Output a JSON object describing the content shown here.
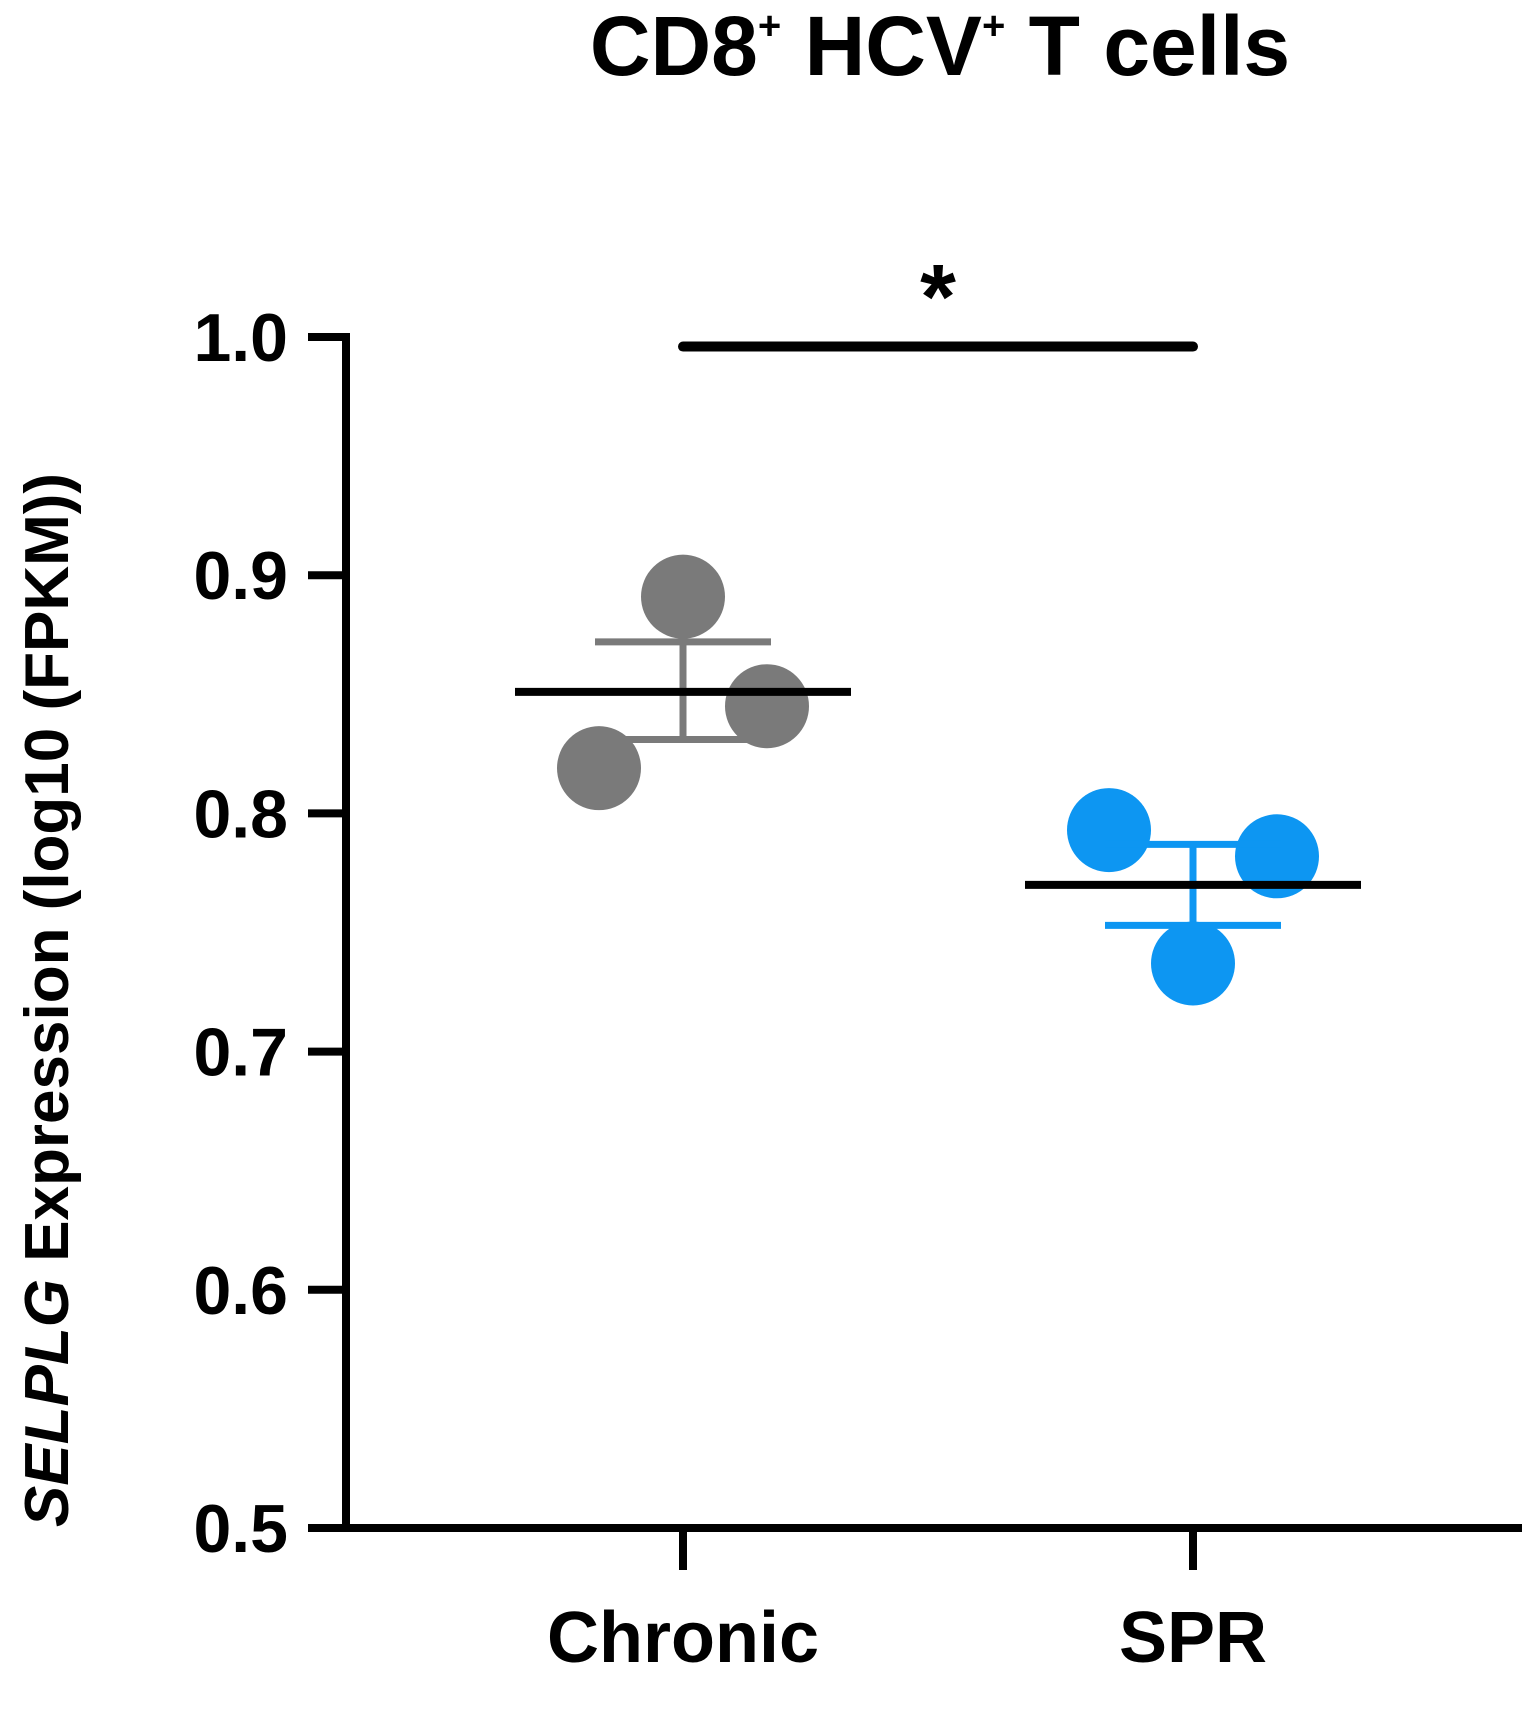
{
  "chart_data": {
    "type": "scatter",
    "title": {
      "parts": [
        {
          "text": "CD8",
          "sup": false
        },
        {
          "text": "+",
          "sup": true
        },
        {
          "text": " HCV",
          "sup": false
        },
        {
          "text": "+",
          "sup": true
        },
        {
          "text": " T cells",
          "sup": false
        }
      ]
    },
    "ylabel": {
      "gene": "SELPLG",
      "rest": " Expression (log10 (FPKM))"
    },
    "ylim": [
      0.5,
      1.0
    ],
    "yticks": [
      "0.5",
      "0.6",
      "0.7",
      "0.8",
      "0.9",
      "1.0"
    ],
    "categories": [
      "Chronic",
      "SPR"
    ],
    "series": [
      {
        "category": "Chronic",
        "color": "#7a7a7a",
        "points": [
          0.891,
          0.845,
          0.819
        ],
        "mean": 0.851,
        "error_upper": 0.872,
        "error_lower": 0.831
      },
      {
        "category": "SPR",
        "color": "#0d96f2",
        "points": [
          0.793,
          0.782,
          0.737
        ],
        "mean": 0.77,
        "error_upper": 0.787,
        "error_lower": 0.753
      }
    ],
    "significance": {
      "label": "*",
      "from": "Chronic",
      "to": "SPR",
      "y": 0.996
    },
    "grid": false,
    "legend": "none"
  }
}
